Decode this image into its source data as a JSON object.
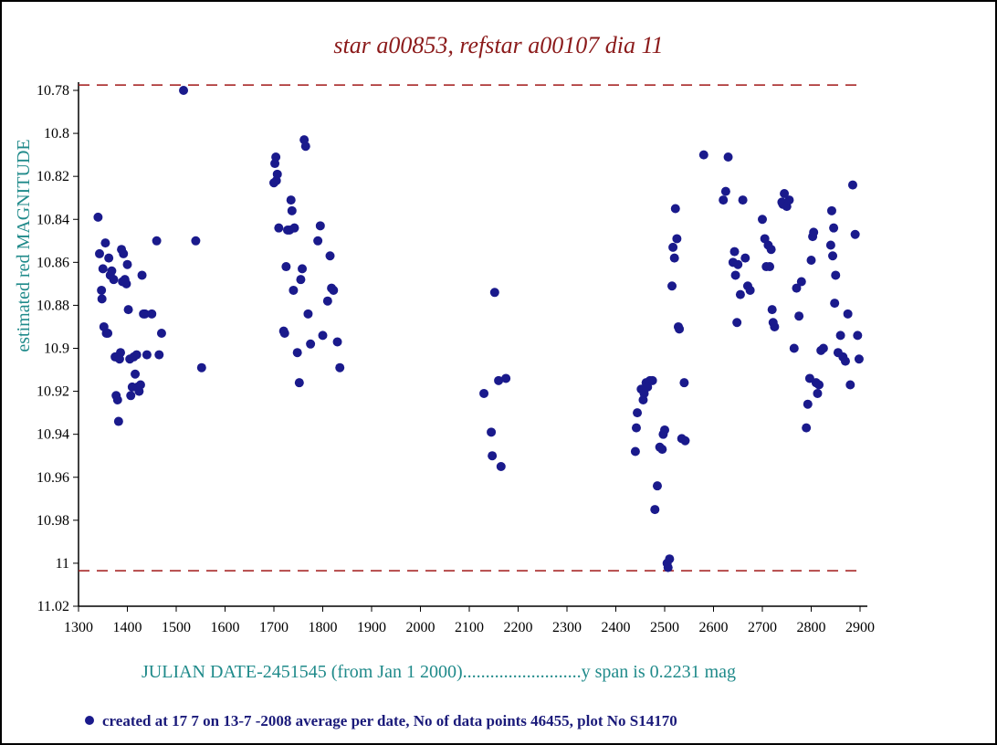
{
  "colors": {
    "title": "#8b1a1a",
    "axis_label": "#1f8a8a",
    "footer_text": "#1a1a7a",
    "points": "#1a1a8c",
    "limit_line": "#a01818",
    "axis": "#000000"
  },
  "chart_data": {
    "type": "scatter",
    "title": "star a00853, refstar a00107  dia  11",
    "xlabel": "JULIAN DATE-2451545 (from Jan 1 2000)..........................y span is 0.2231 mag",
    "ylabel": "estimated red MAGNITUDE",
    "footer": "created at 17 7 on 13-7 -2008 average per date, No of data points 46455,  plot No S14170",
    "xlim": [
      1300,
      2910
    ],
    "ylim": [
      10.775,
      11.02
    ],
    "y_inverted": true,
    "x_ticks": [
      1300,
      1400,
      1500,
      1600,
      1700,
      1800,
      1900,
      2000,
      2100,
      2200,
      2300,
      2400,
      2500,
      2600,
      2700,
      2800,
      2900
    ],
    "x_tick_labels": [
      "1300",
      "1400",
      "1500",
      "1600",
      "1700",
      "1800",
      "1900",
      "2000",
      "2100",
      "2200",
      "2300",
      "2400",
      "2500",
      "2600",
      "2700",
      "2800",
      "2900"
    ],
    "y_ticks": [
      10.78,
      10.8,
      10.82,
      10.84,
      10.86,
      10.88,
      10.9,
      10.92,
      10.94,
      10.96,
      10.98,
      11.0,
      11.02
    ],
    "y_tick_labels": [
      "10.78",
      "10.8",
      "10.82",
      "10.84",
      "10.86",
      "10.88",
      "10.9",
      "10.92",
      "10.94",
      "10.96",
      "10.98",
      "11",
      "11.02"
    ],
    "limit_lines": [
      10.7775,
      11.0035
    ],
    "grid": false,
    "legend": "none",
    "points": [
      [
        1340,
        10.839
      ],
      [
        1343,
        10.856
      ],
      [
        1347,
        10.873
      ],
      [
        1348,
        10.877
      ],
      [
        1350,
        10.863
      ],
      [
        1352,
        10.89
      ],
      [
        1355,
        10.851
      ],
      [
        1357,
        10.893
      ],
      [
        1360,
        10.893
      ],
      [
        1362,
        10.858
      ],
      [
        1365,
        10.866
      ],
      [
        1368,
        10.864
      ],
      [
        1372,
        10.868
      ],
      [
        1375,
        10.904
      ],
      [
        1377,
        10.922
      ],
      [
        1380,
        10.924
      ],
      [
        1382,
        10.934
      ],
      [
        1384,
        10.905
      ],
      [
        1386,
        10.902
      ],
      [
        1388,
        10.854
      ],
      [
        1390,
        10.869
      ],
      [
        1392,
        10.856
      ],
      [
        1395,
        10.868
      ],
      [
        1398,
        10.87
      ],
      [
        1400,
        10.861
      ],
      [
        1402,
        10.882
      ],
      [
        1405,
        10.905
      ],
      [
        1407,
        10.922
      ],
      [
        1410,
        10.918
      ],
      [
        1413,
        10.904
      ],
      [
        1416,
        10.912
      ],
      [
        1419,
        10.903
      ],
      [
        1421,
        10.918
      ],
      [
        1424,
        10.92
      ],
      [
        1427,
        10.917
      ],
      [
        1430,
        10.866
      ],
      [
        1433,
        10.884
      ],
      [
        1436,
        10.884
      ],
      [
        1440,
        10.903
      ],
      [
        1450,
        10.884
      ],
      [
        1460,
        10.85
      ],
      [
        1465,
        10.903
      ],
      [
        1470,
        10.893
      ],
      [
        1515,
        10.78
      ],
      [
        1540,
        10.85
      ],
      [
        1552,
        10.909
      ],
      [
        1700,
        10.823
      ],
      [
        1702,
        10.814
      ],
      [
        1704,
        10.811
      ],
      [
        1705,
        10.822
      ],
      [
        1707,
        10.819
      ],
      [
        1710,
        10.844
      ],
      [
        1720,
        10.892
      ],
      [
        1722,
        10.893
      ],
      [
        1725,
        10.862
      ],
      [
        1728,
        10.845
      ],
      [
        1732,
        10.845
      ],
      [
        1735,
        10.831
      ],
      [
        1737,
        10.836
      ],
      [
        1740,
        10.873
      ],
      [
        1742,
        10.844
      ],
      [
        1748,
        10.902
      ],
      [
        1752,
        10.916
      ],
      [
        1755,
        10.868
      ],
      [
        1758,
        10.863
      ],
      [
        1762,
        10.803
      ],
      [
        1765,
        10.806
      ],
      [
        1770,
        10.884
      ],
      [
        1775,
        10.898
      ],
      [
        1790,
        10.85
      ],
      [
        1795,
        10.843
      ],
      [
        1800,
        10.894
      ],
      [
        1810,
        10.878
      ],
      [
        1815,
        10.857
      ],
      [
        1818,
        10.872
      ],
      [
        1822,
        10.873
      ],
      [
        1830,
        10.897
      ],
      [
        1835,
        10.909
      ],
      [
        2130,
        10.921
      ],
      [
        2145,
        10.939
      ],
      [
        2147,
        10.95
      ],
      [
        2152,
        10.874
      ],
      [
        2160,
        10.915
      ],
      [
        2165,
        10.955
      ],
      [
        2175,
        10.914
      ],
      [
        2440,
        10.948
      ],
      [
        2442,
        10.937
      ],
      [
        2444,
        10.93
      ],
      [
        2452,
        10.919
      ],
      [
        2456,
        10.924
      ],
      [
        2458,
        10.921
      ],
      [
        2462,
        10.916
      ],
      [
        2465,
        10.918
      ],
      [
        2470,
        10.915
      ],
      [
        2475,
        10.915
      ],
      [
        2480,
        10.975
      ],
      [
        2485,
        10.964
      ],
      [
        2490,
        10.946
      ],
      [
        2495,
        10.947
      ],
      [
        2497,
        10.94
      ],
      [
        2500,
        10.938
      ],
      [
        2505,
        11.0
      ],
      [
        2507,
        11.002
      ],
      [
        2510,
        10.998
      ],
      [
        2515,
        10.871
      ],
      [
        2517,
        10.853
      ],
      [
        2520,
        10.858
      ],
      [
        2522,
        10.835
      ],
      [
        2525,
        10.849
      ],
      [
        2528,
        10.89
      ],
      [
        2530,
        10.891
      ],
      [
        2535,
        10.942
      ],
      [
        2540,
        10.916
      ],
      [
        2542,
        10.943
      ],
      [
        2580,
        10.81
      ],
      [
        2620,
        10.831
      ],
      [
        2625,
        10.827
      ],
      [
        2630,
        10.811
      ],
      [
        2640,
        10.86
      ],
      [
        2643,
        10.855
      ],
      [
        2645,
        10.866
      ],
      [
        2648,
        10.888
      ],
      [
        2650,
        10.861
      ],
      [
        2655,
        10.875
      ],
      [
        2660,
        10.831
      ],
      [
        2665,
        10.858
      ],
      [
        2670,
        10.871
      ],
      [
        2675,
        10.873
      ],
      [
        2700,
        10.84
      ],
      [
        2705,
        10.849
      ],
      [
        2708,
        10.862
      ],
      [
        2712,
        10.852
      ],
      [
        2715,
        10.862
      ],
      [
        2718,
        10.854
      ],
      [
        2720,
        10.882
      ],
      [
        2722,
        10.888
      ],
      [
        2725,
        10.89
      ],
      [
        2740,
        10.832
      ],
      [
        2742,
        10.833
      ],
      [
        2745,
        10.828
      ],
      [
        2750,
        10.834
      ],
      [
        2755,
        10.831
      ],
      [
        2765,
        10.9
      ],
      [
        2770,
        10.872
      ],
      [
        2775,
        10.885
      ],
      [
        2780,
        10.869
      ],
      [
        2790,
        10.937
      ],
      [
        2793,
        10.926
      ],
      [
        2797,
        10.914
      ],
      [
        2800,
        10.859
      ],
      [
        2803,
        10.848
      ],
      [
        2805,
        10.846
      ],
      [
        2810,
        10.916
      ],
      [
        2813,
        10.921
      ],
      [
        2816,
        10.917
      ],
      [
        2820,
        10.901
      ],
      [
        2825,
        10.9
      ],
      [
        2840,
        10.852
      ],
      [
        2842,
        10.836
      ],
      [
        2844,
        10.857
      ],
      [
        2846,
        10.844
      ],
      [
        2848,
        10.879
      ],
      [
        2850,
        10.866
      ],
      [
        2855,
        10.902
      ],
      [
        2860,
        10.894
      ],
      [
        2865,
        10.904
      ],
      [
        2870,
        10.906
      ],
      [
        2875,
        10.884
      ],
      [
        2880,
        10.917
      ],
      [
        2885,
        10.824
      ],
      [
        2890,
        10.847
      ],
      [
        2895,
        10.894
      ],
      [
        2898,
        10.905
      ]
    ]
  }
}
